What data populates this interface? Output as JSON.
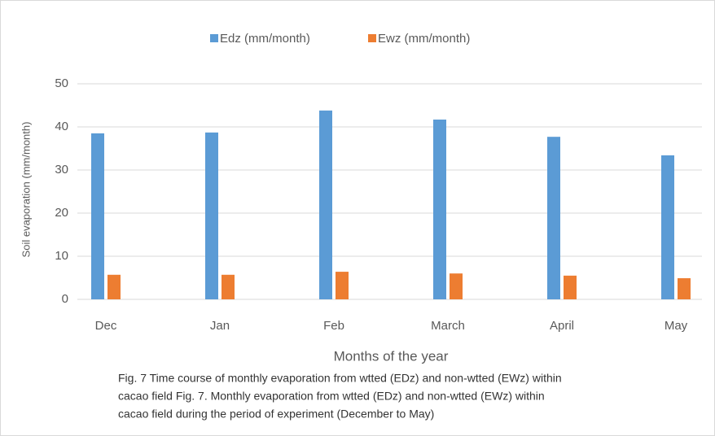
{
  "chart_data": {
    "type": "bar",
    "categories": [
      "Dec",
      "Jan",
      "Feb",
      "March",
      "April",
      "May"
    ],
    "series": [
      {
        "name": "Edz (mm/month)",
        "color": "#5b9bd5",
        "values": [
          38.5,
          38.7,
          43.8,
          41.7,
          37.7,
          33.4
        ]
      },
      {
        "name": "Ewz (mm/month)",
        "color": "#ed7d31",
        "values": [
          5.7,
          5.7,
          6.4,
          6.0,
          5.5,
          4.9
        ]
      }
    ],
    "ylim": [
      0,
      50
    ],
    "yticks": [
      0,
      10,
      20,
      30,
      40,
      50
    ],
    "grid": true,
    "legend": "top",
    "y_label": "Soil evaporation  (mm/month)",
    "x_label": "Months of the year",
    "caption": [
      "Fig. 7 Time course of monthly evaporation from wtted (EDz) and non-wtted (EWz) within",
      "cacao field Fig. 7. Monthly evaporation from wtted (EDz) and non-wtted (EWz) within",
      "cacao field during the period of experiment (December to May)"
    ]
  }
}
